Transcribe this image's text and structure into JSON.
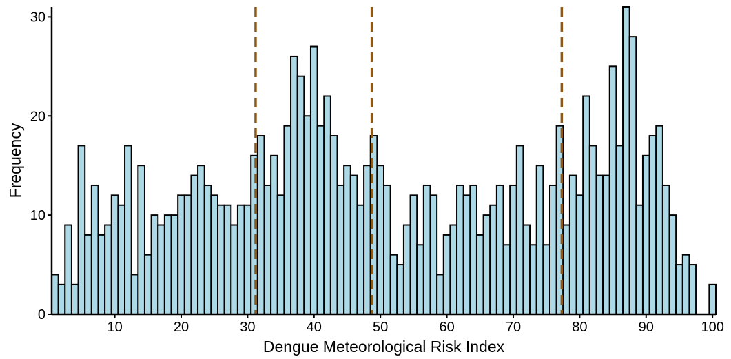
{
  "chart_data": {
    "type": "bar",
    "subtype": "histogram",
    "title": "",
    "xlabel": "Dengue Meteorological Risk Index",
    "ylabel": "Frequency",
    "xlim": [
      1,
      100
    ],
    "ylim": [
      0,
      31
    ],
    "x_ticks": [
      10,
      20,
      30,
      40,
      50,
      60,
      70,
      80,
      90,
      100
    ],
    "y_ticks": [
      0,
      10,
      20,
      30
    ],
    "bin_width": 1,
    "x": [
      1,
      2,
      3,
      4,
      5,
      6,
      7,
      8,
      9,
      10,
      11,
      12,
      13,
      14,
      15,
      16,
      17,
      18,
      19,
      20,
      21,
      22,
      23,
      24,
      25,
      26,
      27,
      28,
      29,
      30,
      31,
      32,
      33,
      34,
      35,
      36,
      37,
      38,
      39,
      40,
      41,
      42,
      43,
      44,
      45,
      46,
      47,
      48,
      49,
      50,
      51,
      52,
      53,
      54,
      55,
      56,
      57,
      58,
      59,
      60,
      61,
      62,
      63,
      64,
      65,
      66,
      67,
      68,
      69,
      70,
      71,
      72,
      73,
      74,
      75,
      76,
      77,
      78,
      79,
      80,
      81,
      82,
      83,
      84,
      85,
      86,
      87,
      88,
      89,
      90,
      91,
      92,
      93,
      94,
      95,
      96,
      97,
      98,
      99,
      100
    ],
    "values": [
      4,
      3,
      9,
      3,
      17,
      8,
      13,
      8,
      9,
      12,
      11,
      17,
      4,
      15,
      6,
      10,
      9,
      10,
      10,
      12,
      12,
      14,
      15,
      13,
      12,
      11,
      11,
      9,
      11,
      11,
      16,
      18,
      13,
      16,
      12,
      19,
      26,
      24,
      20,
      27,
      19,
      22,
      18,
      13,
      15,
      14,
      11,
      15,
      18,
      15,
      13,
      6,
      5,
      9,
      12,
      7,
      13,
      12,
      4,
      8,
      9,
      13,
      12,
      13,
      8,
      10,
      11,
      13,
      7,
      13,
      17,
      9,
      7,
      15,
      7,
      13,
      19,
      9,
      14,
      12,
      22,
      17,
      14,
      14,
      25,
      17,
      31,
      28,
      11,
      16,
      18,
      19,
      13,
      10,
      5,
      6,
      5,
      0,
      0,
      3
    ],
    "reference_lines": [
      31.2,
      48.7,
      77.3
    ],
    "grid": false,
    "colors": {
      "bar_fill": "#ADD8E6",
      "bar_edge": "#000000",
      "reference_line": "#8B5A1A",
      "axis": "#000000"
    }
  }
}
